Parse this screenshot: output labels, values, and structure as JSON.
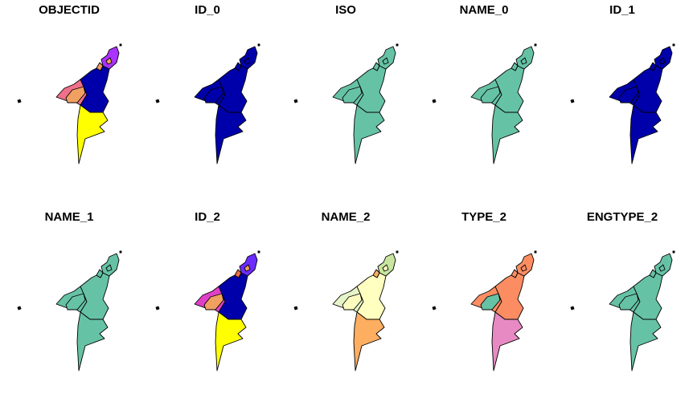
{
  "panels": [
    {
      "title": "OBJECTID",
      "colors": {
        "west": "#f0708a",
        "center": "#0000aa",
        "inner": "#f0a060",
        "south": "#ffff00",
        "tip": "#aa33ff",
        "nub": "#f0a060",
        "islet": "#f0a060"
      }
    },
    {
      "title": "ID_0",
      "colors": {
        "west": "#0000aa",
        "center": "#0000aa",
        "inner": "#0000aa",
        "south": "#0000aa",
        "tip": "#0000aa",
        "nub": "#0000aa",
        "islet": "#0000aa"
      }
    },
    {
      "title": "ISO",
      "colors": {
        "west": "#66c2a5",
        "center": "#66c2a5",
        "inner": "#66c2a5",
        "south": "#66c2a5",
        "tip": "#66c2a5",
        "nub": "#66c2a5",
        "islet": "#66c2a5"
      }
    },
    {
      "title": "NAME_0",
      "colors": {
        "west": "#66c2a5",
        "center": "#66c2a5",
        "inner": "#66c2a5",
        "south": "#66c2a5",
        "tip": "#66c2a5",
        "nub": "#66c2a5",
        "islet": "#66c2a5"
      }
    },
    {
      "title": "ID_1",
      "colors": {
        "west": "#0000aa",
        "center": "#0000aa",
        "inner": "#0000aa",
        "south": "#0000aa",
        "tip": "#0000aa",
        "nub": "#0000aa",
        "islet": "#0000aa"
      }
    },
    {
      "title": "NAME_1",
      "colors": {
        "west": "#66c2a5",
        "center": "#66c2a5",
        "inner": "#66c2a5",
        "south": "#66c2a5",
        "tip": "#66c2a5",
        "nub": "#66c2a5",
        "islet": "#66c2a5"
      }
    },
    {
      "title": "ID_2",
      "colors": {
        "west": "#e040c8",
        "center": "#0000aa",
        "inner": "#f0a060",
        "south": "#ffff00",
        "tip": "#6a2cff",
        "nub": "#f07040",
        "islet": "#f0a060"
      }
    },
    {
      "title": "NAME_2",
      "colors": {
        "west": "#e6f5c9",
        "center": "#ffffbf",
        "inner": "#fdfdc0",
        "south": "#fdae61",
        "tip": "#c7e59e",
        "nub": "#fdae61",
        "islet": "#ffffbf"
      }
    },
    {
      "title": "TYPE_2",
      "colors": {
        "west": "#fc8d62",
        "center": "#fc8d62",
        "inner": "#66c2a5",
        "south": "#e78ac3",
        "tip": "#fc8d62",
        "nub": "#fc8d62",
        "islet": "#fc8d62"
      }
    },
    {
      "title": "ENGTYPE_2",
      "colors": {
        "west": "#66c2a5",
        "center": "#66c2a5",
        "inner": "#66c2a5",
        "south": "#66c2a5",
        "tip": "#66c2a5",
        "nub": "#66c2a5",
        "islet": "#66c2a5"
      }
    }
  ]
}
